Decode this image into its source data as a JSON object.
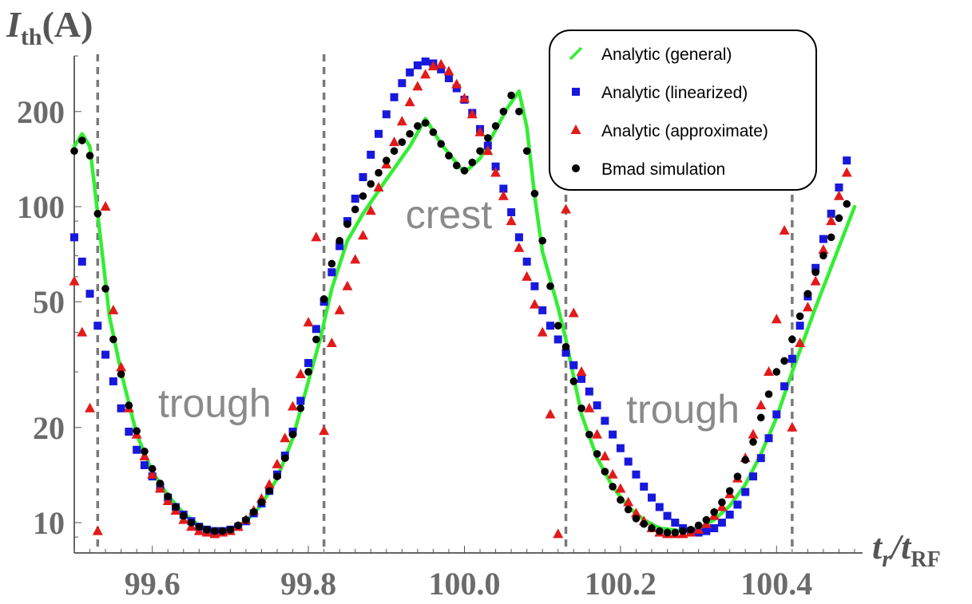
{
  "chart_data": {
    "type": "scatter",
    "title": "",
    "xlabel": "t_r/t_RF",
    "ylabel": "I_th(A)",
    "xlim": [
      99.5,
      100.5
    ],
    "ylim": [
      9,
      300
    ],
    "yscale": "log",
    "grid": false,
    "x_ticks": [
      {
        "value": 99.6,
        "label": "99.6"
      },
      {
        "value": 99.8,
        "label": "99.8"
      },
      {
        "value": 100.0,
        "label": "100.0"
      },
      {
        "value": 100.2,
        "label": "100.2"
      },
      {
        "value": 100.4,
        "label": "100.4"
      }
    ],
    "y_ticks": [
      {
        "value": 10,
        "label": "10"
      },
      {
        "value": 20,
        "label": "20"
      },
      {
        "value": 50,
        "label": "50"
      },
      {
        "value": 100,
        "label": "100"
      },
      {
        "value": 200,
        "label": "200"
      }
    ],
    "vlines": [
      99.53,
      99.82,
      100.13,
      100.42
    ],
    "annotations": [
      {
        "text": "trough",
        "x": 99.68,
        "y": 24
      },
      {
        "text": "crest",
        "x": 99.98,
        "y": 95
      },
      {
        "text": "trough",
        "x": 100.28,
        "y": 23
      }
    ],
    "legend": {
      "position": "top-right",
      "entries": [
        {
          "label": "Analytic (general)",
          "marker": "line",
          "color": "#33ee33"
        },
        {
          "label": "Analytic (linearized)",
          "marker": "square",
          "color": "#1818dd"
        },
        {
          "label": "Analytic (approximate)",
          "marker": "triangle",
          "color": "#e21a1a"
        },
        {
          "label": "Bmad simulation",
          "marker": "circle",
          "color": "#000000"
        }
      ]
    },
    "series": [
      {
        "name": "Analytic (general)",
        "marker": "line",
        "color": "#33ee33",
        "x": [
          99.5,
          99.51,
          99.52,
          99.53,
          99.545,
          99.56,
          99.58,
          99.6,
          99.62,
          99.64,
          99.66,
          99.68,
          99.7,
          99.72,
          99.74,
          99.76,
          99.78,
          99.8,
          99.815,
          99.83,
          99.85,
          99.87,
          99.9,
          99.93,
          99.95,
          99.97,
          100.0,
          100.02,
          100.04,
          100.055,
          100.07,
          100.08,
          100.09,
          100.1,
          100.12,
          100.13,
          100.15,
          100.17,
          100.19,
          100.21,
          100.23,
          100.25,
          100.28,
          100.3,
          100.32,
          100.34,
          100.36,
          100.38,
          100.4,
          100.42,
          100.45,
          100.5
        ],
        "y": [
          155,
          170,
          155,
          95,
          45,
          30,
          19,
          14.5,
          12.2,
          10.7,
          9.8,
          9.4,
          9.5,
          10.1,
          11.4,
          13.8,
          18.5,
          28,
          38,
          55,
          78,
          95,
          122,
          155,
          190,
          158,
          128,
          142,
          175,
          205,
          232,
          178,
          108,
          72,
          48,
          38,
          22,
          16,
          13,
          11.2,
          10.2,
          9.6,
          9.4,
          9.6,
          10.2,
          11.3,
          13.2,
          16.5,
          21.5,
          30,
          48,
          100
        ]
      },
      {
        "name": "Analytic (linearized)",
        "marker": "square",
        "color": "#1818dd",
        "x": [
          99.5,
          99.51,
          99.52,
          99.53,
          99.54,
          99.55,
          99.56,
          99.57,
          99.58,
          99.59,
          99.6,
          99.61,
          99.62,
          99.63,
          99.64,
          99.65,
          99.66,
          99.67,
          99.68,
          99.69,
          99.7,
          99.71,
          99.72,
          99.73,
          99.74,
          99.75,
          99.76,
          99.77,
          99.78,
          99.79,
          99.8,
          99.81,
          99.82,
          99.83,
          99.84,
          99.85,
          99.86,
          99.87,
          99.88,
          99.89,
          99.9,
          99.91,
          99.92,
          99.93,
          99.94,
          99.95,
          99.96,
          99.97,
          99.98,
          99.99,
          100.0,
          100.01,
          100.02,
          100.03,
          100.04,
          100.05,
          100.06,
          100.07,
          100.08,
          100.09,
          100.1,
          100.11,
          100.12,
          100.13,
          100.14,
          100.15,
          100.16,
          100.17,
          100.18,
          100.19,
          100.2,
          100.21,
          100.22,
          100.23,
          100.24,
          100.25,
          100.26,
          100.27,
          100.28,
          100.29,
          100.3,
          100.31,
          100.32,
          100.33,
          100.34,
          100.35,
          100.36,
          100.37,
          100.38,
          100.39,
          100.4,
          100.41,
          100.42,
          100.43,
          100.44,
          100.45,
          100.46,
          100.47,
          100.48,
          100.49
        ],
        "y": [
          80,
          67,
          53,
          42,
          34,
          28,
          23,
          19.4,
          17,
          15.2,
          14,
          13,
          12,
          11.2,
          10.6,
          10.1,
          9.7,
          9.5,
          9.4,
          9.4,
          9.5,
          9.7,
          10.1,
          10.7,
          11.5,
          12.6,
          14.2,
          16.3,
          19.4,
          24.3,
          32,
          41,
          50,
          62,
          75,
          90,
          106,
          124,
          146,
          170,
          196,
          222,
          246,
          266,
          280,
          288,
          284,
          272,
          255,
          237,
          218,
          198,
          176,
          156,
          134,
          114,
          96,
          80,
          67,
          56,
          47,
          42,
          38,
          34.5,
          31.5,
          28.5,
          26,
          23.5,
          21,
          19,
          17.2,
          15.6,
          14.2,
          13,
          12,
          11.2,
          10.5,
          10,
          9.6,
          9.4,
          9.3,
          9.4,
          9.6,
          10,
          10.6,
          11.4,
          12.5,
          14,
          16,
          18.5,
          22,
          27,
          33,
          42,
          52,
          64,
          79,
          95,
          115,
          140
        ]
      },
      {
        "name": "Analytic (approximate)",
        "marker": "triangle",
        "color": "#e21a1a",
        "x": [
          99.5,
          99.51,
          99.52,
          99.53,
          99.54,
          99.55,
          99.56,
          99.57,
          99.58,
          99.59,
          99.6,
          99.61,
          99.62,
          99.63,
          99.64,
          99.65,
          99.66,
          99.67,
          99.68,
          99.69,
          99.7,
          99.71,
          99.72,
          99.73,
          99.74,
          99.75,
          99.76,
          99.77,
          99.78,
          99.79,
          99.8,
          99.81,
          99.82,
          99.83,
          99.84,
          99.85,
          99.86,
          99.87,
          99.88,
          99.89,
          99.9,
          99.91,
          99.92,
          99.93,
          99.94,
          99.95,
          99.96,
          99.97,
          99.98,
          99.99,
          100.0,
          100.01,
          100.02,
          100.03,
          100.04,
          100.05,
          100.06,
          100.07,
          100.08,
          100.09,
          100.1,
          100.11,
          100.12,
          100.13,
          100.14,
          100.15,
          100.16,
          100.17,
          100.18,
          100.19,
          100.2,
          100.21,
          100.22,
          100.23,
          100.24,
          100.25,
          100.26,
          100.27,
          100.28,
          100.29,
          100.3,
          100.31,
          100.32,
          100.33,
          100.34,
          100.35,
          100.36,
          100.37,
          100.38,
          100.39,
          100.4,
          100.41,
          100.42,
          100.43,
          100.44,
          100.45,
          100.46,
          100.47,
          100.48,
          100.49
        ],
        "y": [
          58,
          40,
          23,
          9.4,
          100,
          47,
          31,
          23,
          19,
          16.2,
          14.2,
          12.8,
          11.7,
          10.9,
          10.2,
          9.7,
          9.4,
          9.3,
          9.2,
          9.3,
          9.4,
          9.7,
          10.2,
          10.9,
          11.9,
          13.2,
          15.3,
          18.5,
          23.3,
          29.5,
          43,
          80,
          19.5,
          37,
          47,
          56,
          68,
          81,
          97,
          115,
          136,
          160,
          186,
          214,
          240,
          262,
          278,
          282,
          268,
          244,
          220,
          196,
          172,
          150,
          128,
          108,
          90,
          74,
          60,
          49,
          40,
          22,
          9.2,
          98,
          46,
          30,
          23,
          19,
          16.2,
          14.2,
          12.8,
          11.6,
          10.7,
          10.1,
          9.6,
          9.3,
          9.2,
          9.2,
          9.2,
          9.3,
          9.5,
          9.9,
          10.5,
          11.2,
          12.3,
          13.8,
          16,
          19,
          23.5,
          30,
          44,
          84,
          20,
          37,
          48,
          58,
          73,
          90,
          108,
          128
        ]
      },
      {
        "name": "Bmad simulation",
        "marker": "circle",
        "color": "#000000",
        "x": [
          99.5,
          99.51,
          99.52,
          99.53,
          99.54,
          99.55,
          99.56,
          99.57,
          99.58,
          99.59,
          99.6,
          99.61,
          99.62,
          99.63,
          99.64,
          99.65,
          99.66,
          99.67,
          99.68,
          99.69,
          99.7,
          99.71,
          99.72,
          99.73,
          99.74,
          99.75,
          99.76,
          99.77,
          99.78,
          99.79,
          99.8,
          99.81,
          99.82,
          99.83,
          99.84,
          99.85,
          99.86,
          99.87,
          99.88,
          99.89,
          99.9,
          99.91,
          99.92,
          99.93,
          99.94,
          99.95,
          99.96,
          99.97,
          99.98,
          99.99,
          100.0,
          100.01,
          100.02,
          100.03,
          100.04,
          100.05,
          100.06,
          100.07,
          100.08,
          100.09,
          100.1,
          100.11,
          100.12,
          100.13,
          100.14,
          100.15,
          100.16,
          100.17,
          100.18,
          100.19,
          100.2,
          100.21,
          100.22,
          100.23,
          100.24,
          100.25,
          100.26,
          100.27,
          100.28,
          100.29,
          100.3,
          100.31,
          100.32,
          100.33,
          100.34,
          100.35,
          100.36,
          100.37,
          100.38,
          100.39,
          100.4,
          100.41,
          100.42,
          100.43,
          100.44,
          100.45,
          100.46,
          100.47,
          100.48,
          100.49
        ],
        "y": [
          150,
          162,
          145,
          95,
          55,
          38,
          29.5,
          23.5,
          19.5,
          16.8,
          14.8,
          13.3,
          12.1,
          11.2,
          10.5,
          10,
          9.7,
          9.5,
          9.4,
          9.4,
          9.5,
          9.8,
          10.2,
          10.8,
          11.6,
          12.6,
          14,
          16,
          19,
          23,
          30,
          38,
          51,
          66,
          78,
          88,
          98,
          108,
          118,
          128,
          140,
          150,
          160,
          170,
          180,
          184,
          172,
          158,
          145,
          135,
          130,
          138,
          150,
          165,
          180,
          200,
          225,
          200,
          150,
          110,
          78,
          56,
          42,
          36,
          28,
          23,
          19,
          16.5,
          14.5,
          13,
          11.8,
          11,
          10.3,
          9.9,
          9.6,
          9.4,
          9.3,
          9.3,
          9.4,
          9.5,
          9.8,
          10.2,
          10.8,
          11.6,
          12.6,
          14,
          15.8,
          18,
          21.5,
          25.5,
          30,
          32.5,
          38,
          45,
          53,
          62,
          70,
          80,
          92,
          102
        ]
      }
    ]
  }
}
